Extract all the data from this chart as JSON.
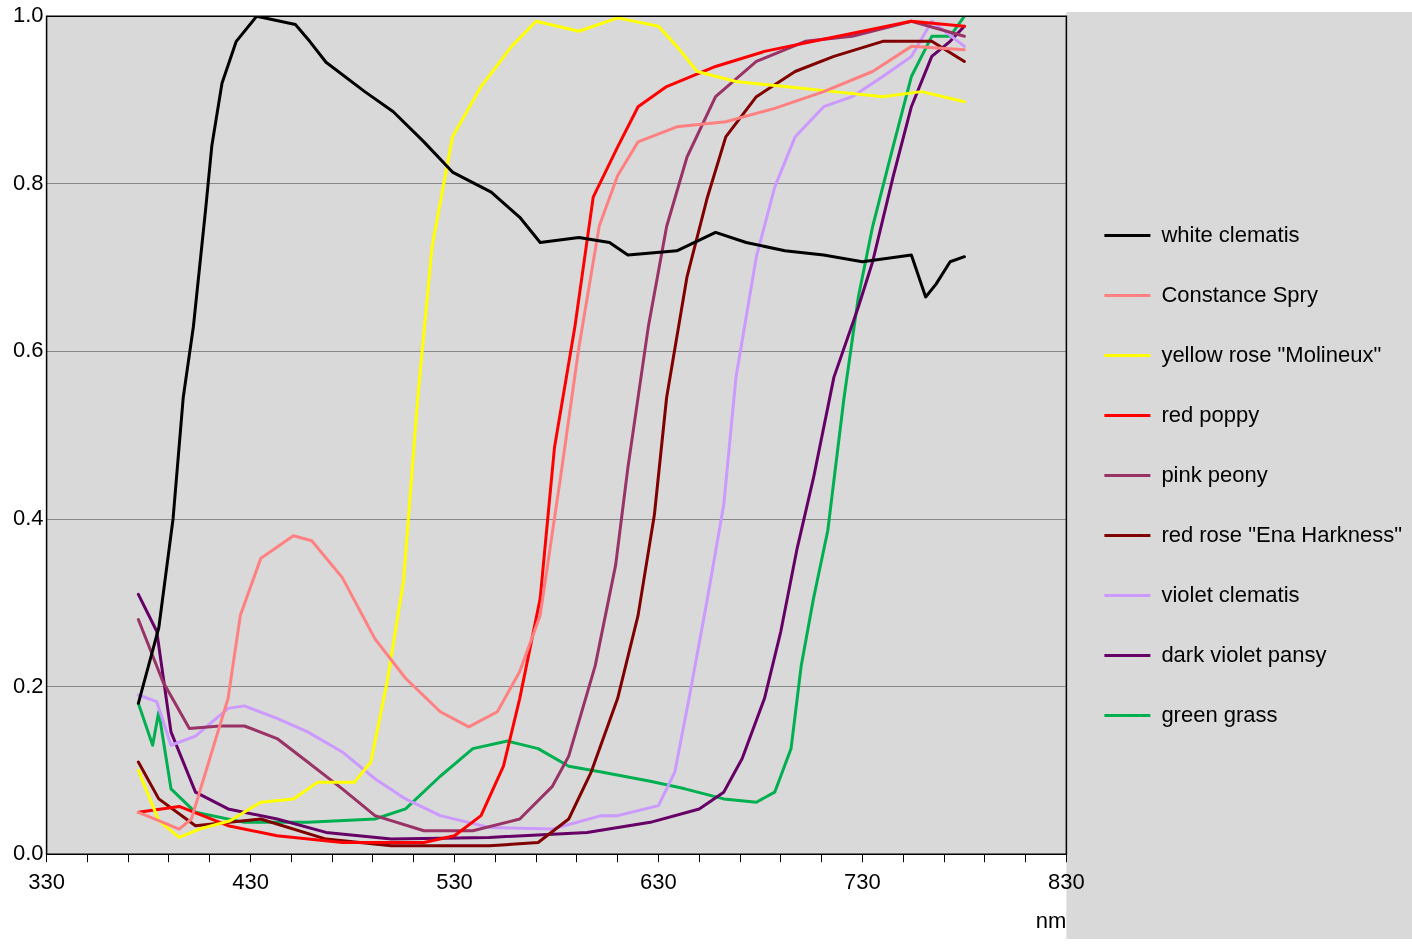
{
  "chart_data": {
    "type": "line",
    "xlabel": "nm",
    "xlim": [
      330,
      830
    ],
    "ylim": [
      0,
      1
    ],
    "xticks": [
      330,
      {
        "value": 350,
        "label": null
      },
      {
        "value": 370,
        "label": null
      },
      {
        "value": 390,
        "label": null
      },
      {
        "value": 410,
        "label": null
      },
      430,
      {
        "value": 450,
        "label": null
      },
      {
        "value": 470,
        "label": null
      },
      {
        "value": 490,
        "label": null
      },
      {
        "value": 510,
        "label": null
      },
      530,
      {
        "value": 550,
        "label": null
      },
      {
        "value": 570,
        "label": null
      },
      {
        "value": 590,
        "label": null
      },
      {
        "value": 610,
        "label": null
      },
      630,
      {
        "value": 650,
        "label": null
      },
      {
        "value": 670,
        "label": null
      },
      {
        "value": 690,
        "label": null
      },
      {
        "value": 710,
        "label": null
      },
      730,
      {
        "value": 750,
        "label": null
      },
      {
        "value": 770,
        "label": null
      },
      {
        "value": 790,
        "label": null
      },
      {
        "value": 810,
        "label": null
      },
      830
    ],
    "yticks": [
      {
        "value": 0,
        "label": "0.0"
      },
      0.2,
      0.4,
      0.6,
      0.8,
      {
        "value": 1,
        "label": "1.0"
      }
    ],
    "grid": "y",
    "legend": "right",
    "series": [
      {
        "name": "white clematis",
        "color": "#000000",
        "x": [
          375,
          385,
          392,
          397,
          402,
          408,
          411,
          416,
          423,
          433,
          452,
          459,
          467,
          486,
          500,
          515,
          529,
          548,
          562,
          572,
          591,
          606,
          615,
          639,
          658,
          673,
          692,
          711,
          730,
          754,
          761,
          766,
          773,
          780
        ],
        "values": [
          0.18,
          0.27,
          0.4,
          0.545,
          0.63,
          0.77,
          0.845,
          0.92,
          0.97,
          1.0,
          0.99,
          0.97,
          0.945,
          0.91,
          0.886,
          0.85,
          0.814,
          0.79,
          0.76,
          0.73,
          0.736,
          0.73,
          0.715,
          0.72,
          0.742,
          0.73,
          0.72,
          0.715,
          0.707,
          0.715,
          0.665,
          0.68,
          0.707,
          0.713
        ]
      },
      {
        "name": "Constance Spry",
        "color": "#ff8080",
        "x": [
          375,
          385,
          395,
          401,
          419,
          425,
          435,
          451,
          460,
          475,
          491,
          506,
          523,
          537,
          551,
          562,
          572,
          582,
          591,
          601,
          610,
          620,
          639,
          663,
          687,
          711,
          735,
          754,
          780
        ],
        "values": [
          0.05,
          0.04,
          0.03,
          0.042,
          0.186,
          0.285,
          0.353,
          0.38,
          0.374,
          0.33,
          0.257,
          0.21,
          0.17,
          0.152,
          0.17,
          0.218,
          0.285,
          0.45,
          0.605,
          0.75,
          0.81,
          0.85,
          0.868,
          0.874,
          0.89,
          0.91,
          0.934,
          0.964,
          0.96
        ]
      },
      {
        "name": "yellow rose \"Molineux\"",
        "color": "#ffff00",
        "x": [
          375,
          385,
          395,
          405,
          420,
          435,
          451,
          463,
          481,
          489,
          497,
          505,
          512,
          519,
          529,
          543,
          558,
          570,
          591,
          610,
          630,
          639,
          649,
          668,
          692,
          716,
          740,
          759,
          780
        ],
        "values": [
          0.1,
          0.04,
          0.02,
          0.03,
          0.04,
          0.062,
          0.066,
          0.086,
          0.086,
          0.11,
          0.206,
          0.326,
          0.545,
          0.725,
          0.856,
          0.916,
          0.964,
          0.994,
          0.982,
          0.998,
          0.988,
          0.964,
          0.934,
          0.922,
          0.916,
          0.91,
          0.904,
          0.91,
          0.898
        ]
      },
      {
        "name": "red poppy",
        "color": "#ff0000",
        "x": [
          375,
          395,
          419,
          443,
          475,
          515,
          530,
          543,
          554,
          562,
          572,
          579,
          589,
          598,
          610,
          620,
          634,
          658,
          682,
          706,
          730,
          754,
          780
        ],
        "values": [
          0.05,
          0.057,
          0.034,
          0.022,
          0.014,
          0.014,
          0.022,
          0.046,
          0.105,
          0.186,
          0.305,
          0.485,
          0.629,
          0.784,
          0.844,
          0.892,
          0.916,
          0.94,
          0.958,
          0.97,
          0.982,
          0.994,
          0.988
        ]
      },
      {
        "name": "pink peony",
        "color": "#993366",
        "x": [
          375,
          387,
          400,
          415,
          427,
          443,
          458,
          475,
          491,
          515,
          539,
          562,
          578,
          586,
          599,
          609,
          615,
          625,
          634,
          644,
          658,
          678,
          702,
          725,
          754,
          780
        ],
        "values": [
          0.28,
          0.206,
          0.15,
          0.153,
          0.153,
          0.138,
          0.11,
          0.078,
          0.046,
          0.028,
          0.028,
          0.042,
          0.081,
          0.117,
          0.225,
          0.345,
          0.461,
          0.629,
          0.749,
          0.832,
          0.904,
          0.946,
          0.97,
          0.976,
          0.994,
          0.976
        ]
      },
      {
        "name": "red rose \"Ena Harkness\"",
        "color": "#800000",
        "x": [
          375,
          385,
          403,
          435,
          467,
          499,
          547,
          571,
          586,
          597,
          610,
          620,
          628,
          634,
          644,
          654,
          663,
          678,
          697,
          716,
          740,
          764,
          780
        ],
        "values": [
          0.11,
          0.066,
          0.034,
          0.042,
          0.018,
          0.01,
          0.01,
          0.014,
          0.042,
          0.098,
          0.186,
          0.285,
          0.405,
          0.545,
          0.689,
          0.784,
          0.856,
          0.904,
          0.934,
          0.952,
          0.97,
          0.97,
          0.946
        ]
      },
      {
        "name": "violet clematis",
        "color": "#cc99ff",
        "x": [
          375,
          384,
          391,
          403,
          419,
          427,
          443,
          458,
          475,
          491,
          506,
          523,
          547,
          578,
          602,
          610,
          630,
          638,
          645,
          654,
          662,
          668,
          678,
          687,
          697,
          711,
          725,
          740,
          754,
          764,
          780
        ],
        "values": [
          0.19,
          0.182,
          0.13,
          0.141,
          0.174,
          0.177,
          0.162,
          0.146,
          0.122,
          0.09,
          0.066,
          0.046,
          0.032,
          0.03,
          0.046,
          0.046,
          0.058,
          0.098,
          0.186,
          0.305,
          0.417,
          0.569,
          0.713,
          0.796,
          0.856,
          0.892,
          0.904,
          0.928,
          0.952,
          0.994,
          0.964
        ]
      },
      {
        "name": "dark violet pansy",
        "color": "#660066",
        "x": [
          375,
          384,
          391,
          403,
          419,
          443,
          467,
          499,
          547,
          595,
          626,
          650,
          662,
          671,
          682,
          690,
          698,
          706,
          716,
          728,
          735,
          745,
          754,
          764,
          773,
          780
        ],
        "values": [
          0.31,
          0.266,
          0.146,
          0.074,
          0.054,
          0.042,
          0.026,
          0.018,
          0.02,
          0.026,
          0.038,
          0.054,
          0.074,
          0.114,
          0.186,
          0.266,
          0.365,
          0.449,
          0.569,
          0.653,
          0.707,
          0.808,
          0.892,
          0.952,
          0.97,
          0.988
        ]
      },
      {
        "name": "green grass",
        "color": "#00b050",
        "x": [
          375,
          382,
          385,
          391,
          403,
          427,
          458,
          491,
          506,
          523,
          539,
          556,
          571,
          586,
          602,
          626,
          643,
          662,
          678,
          687,
          695,
          700,
          706,
          713,
          721,
          728,
          735,
          745,
          754,
          764,
          773,
          780
        ],
        "values": [
          0.18,
          0.13,
          0.17,
          0.078,
          0.05,
          0.038,
          0.038,
          0.042,
          0.054,
          0.093,
          0.126,
          0.135,
          0.126,
          0.105,
          0.098,
          0.087,
          0.078,
          0.066,
          0.062,
          0.074,
          0.126,
          0.225,
          0.305,
          0.386,
          0.545,
          0.665,
          0.749,
          0.844,
          0.928,
          0.976,
          0.976,
          1.0
        ]
      }
    ]
  }
}
